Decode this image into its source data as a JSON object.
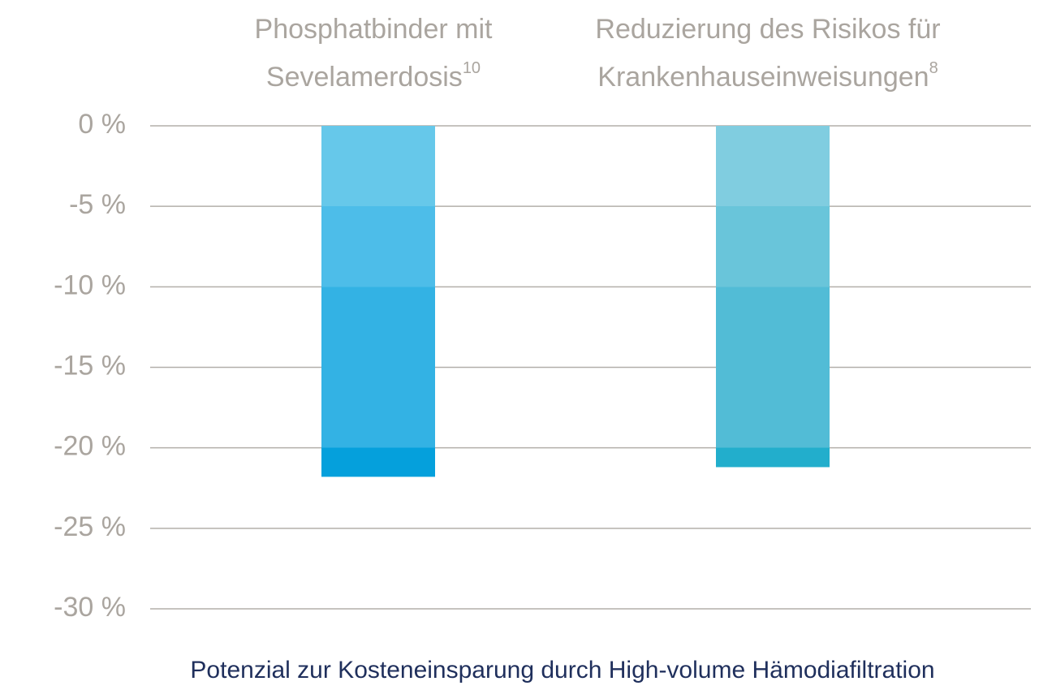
{
  "chart_data": {
    "type": "bar",
    "title": "Potenzial zur Kosteneinsparung durch High-volume Hämodiafiltration",
    "categories": [
      [
        "Phosphatbinder mit",
        "Sevelamerdosis"
      ],
      [
        "Reduzierung des Risikos für",
        "Krankenhauseinweisungen"
      ]
    ],
    "category_superscripts": [
      "10",
      "8"
    ],
    "values": [
      -21.8,
      -21.2
    ],
    "band_colors": [
      [
        "#66c8ea",
        "#4dbde9",
        "#33b2e4",
        "#33b2e4",
        "#05a0dc"
      ],
      [
        "#80cde0",
        "#69c5da",
        "#52bcd6",
        "#52bcd6",
        "#22aecc"
      ]
    ],
    "ylim": [
      -30,
      0
    ],
    "yticks": [
      {
        "value": 0,
        "label": "0 %"
      },
      {
        "value": -5,
        "label": "-5 %"
      },
      {
        "value": -10,
        "label": "-10 %"
      },
      {
        "value": -15,
        "label": "-15 %"
      },
      {
        "value": -20,
        "label": "-20 %"
      },
      {
        "value": -25,
        "label": "-25 %"
      },
      {
        "value": -30,
        "label": "-30 %"
      }
    ],
    "grid": true
  }
}
